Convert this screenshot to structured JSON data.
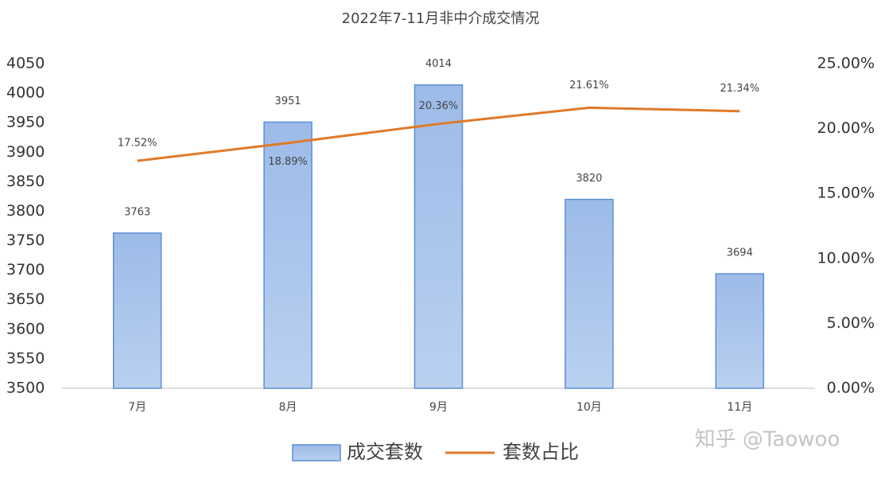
{
  "chart_data": {
    "type": "bar",
    "title": "2022年7-11月非中介成交情况",
    "categories": [
      "7月",
      "8月",
      "9月",
      "10月",
      "11月"
    ],
    "series": [
      {
        "name": "成交套数",
        "type": "bar",
        "color": "#a9c4ea",
        "values": [
          3763,
          3951,
          4014,
          3820,
          3694
        ]
      },
      {
        "name": "套数占比",
        "type": "line",
        "axis": "y2",
        "color": "#e07a2a",
        "values": [
          17.52,
          18.89,
          20.36,
          21.61,
          21.34
        ],
        "value_labels": [
          "17.52%",
          "18.89%",
          "20.36%",
          "21.61%",
          "21.34%"
        ]
      }
    ],
    "ylim": [
      3500,
      4050
    ],
    "yticks": [
      3500,
      3550,
      3600,
      3650,
      3700,
      3750,
      3800,
      3850,
      3900,
      3950,
      4000,
      4050
    ],
    "y2lim": [
      0,
      25
    ],
    "y2ticks": [
      {
        "value": 0,
        "label": "0.00%"
      },
      {
        "value": 5,
        "label": "5.00%"
      },
      {
        "value": 10,
        "label": "10.00%"
      },
      {
        "value": 15,
        "label": "15.00%"
      },
      {
        "value": 20,
        "label": "20.00%"
      },
      {
        "value": 25,
        "label": "25.00%"
      }
    ],
    "grid": false,
    "legend": "bottom",
    "watermark": "知乎 @Taowoo"
  }
}
